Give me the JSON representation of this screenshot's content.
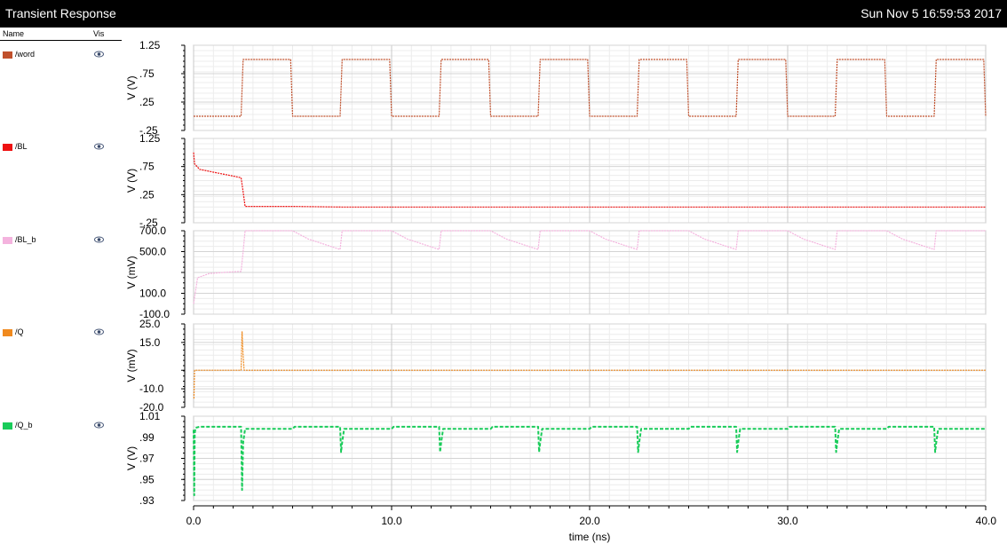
{
  "window": {
    "title": "Transient Response",
    "timestamp": "Sun Nov 5 16:59:53 2017"
  },
  "legend": {
    "header_name": "Name",
    "header_vis": "Vis",
    "items": [
      {
        "label": "/word",
        "color": "#c0502c",
        "visible_icon": "eye-icon"
      },
      {
        "label": "/BL",
        "color": "#ee1111",
        "visible_icon": "eye-icon"
      },
      {
        "label": "/BL_b",
        "color": "#f4b3de",
        "visible_icon": "eye-icon"
      },
      {
        "label": "/Q",
        "color": "#f08a1e",
        "visible_icon": "eye-icon"
      },
      {
        "label": "/Q_b",
        "color": "#19cc5a",
        "visible_icon": "eye-icon"
      }
    ]
  },
  "chart_data": {
    "type": "line",
    "xlabel": "time (ns)",
    "xlim": [
      0,
      40
    ],
    "xticks": [
      0,
      10,
      20,
      30,
      40
    ],
    "xtick_labels": [
      "0.0",
      "10.0",
      "20.0",
      "30.0",
      "40.0"
    ],
    "grid": true,
    "subplots": [
      {
        "name": "/word",
        "color": "#c0502c",
        "ylabel": "V (V)",
        "ylim": [
          -0.25,
          1.25
        ],
        "yticks": [
          -0.25,
          0.25,
          0.75,
          1.25
        ],
        "ytick_labels": [
          "-.25",
          ".25",
          ".75",
          "1.25"
        ],
        "x": [
          0,
          2.4,
          2.5,
          4.9,
          5.0,
          7.4,
          7.5,
          9.9,
          10.0,
          12.4,
          12.5,
          14.9,
          15.0,
          17.4,
          17.5,
          19.9,
          20.0,
          22.4,
          22.5,
          24.9,
          25.0,
          27.4,
          27.5,
          29.9,
          30.0,
          32.4,
          32.5,
          34.9,
          35.0,
          37.4,
          37.5,
          39.9,
          40.0
        ],
        "y": [
          0,
          0,
          1.0,
          1.0,
          0,
          0,
          1.0,
          1.0,
          0,
          0,
          1.0,
          1.0,
          0,
          0,
          1.0,
          1.0,
          0,
          0,
          1.0,
          1.0,
          0,
          0,
          1.0,
          1.0,
          0,
          0,
          1.0,
          1.0,
          0,
          0,
          1.0,
          1.0,
          0
        ]
      },
      {
        "name": "/BL",
        "color": "#ee1111",
        "ylabel": "V (V)",
        "ylim": [
          -0.25,
          1.25
        ],
        "yticks": [
          -0.25,
          0.25,
          0.75,
          1.25
        ],
        "ytick_labels": [
          "-.25",
          ".25",
          ".75",
          "1.25"
        ],
        "x": [
          0,
          0.05,
          0.3,
          1.0,
          2.0,
          2.4,
          2.5,
          2.6,
          5.0,
          7.5,
          10.0,
          15.0,
          20.0,
          25.0,
          30.0,
          35.0,
          40.0
        ],
        "y": [
          1.0,
          0.8,
          0.7,
          0.65,
          0.58,
          0.55,
          0.3,
          0.04,
          0.04,
          0.03,
          0.03,
          0.03,
          0.03,
          0.03,
          0.03,
          0.03,
          0.03
        ]
      },
      {
        "name": "/BL_b",
        "color": "#f4b3de",
        "ylabel": "V (mV)",
        "ylim": [
          -100,
          700
        ],
        "yticks": [
          -100,
          100,
          300,
          500,
          700
        ],
        "ytick_labels": [
          "-100.0",
          "100.0",
          "",
          "500.0",
          "700.0"
        ],
        "x": [
          0,
          0.2,
          0.8,
          1.5,
          2.4,
          2.5,
          2.6,
          5.0,
          5.8,
          7.4,
          7.5,
          10.0,
          10.8,
          12.4,
          12.5,
          15.0,
          15.8,
          17.4,
          17.5,
          20.0,
          20.8,
          22.4,
          22.5,
          25.0,
          25.8,
          27.4,
          27.5,
          30.0,
          30.8,
          32.4,
          32.5,
          35.0,
          35.8,
          37.4,
          37.5,
          40.0
        ],
        "y": [
          0,
          250,
          290,
          300,
          310,
          500,
          700,
          700,
          620,
          520,
          700,
          700,
          620,
          520,
          700,
          700,
          620,
          520,
          700,
          700,
          620,
          520,
          700,
          700,
          620,
          520,
          700,
          700,
          620,
          520,
          700,
          700,
          620,
          520,
          700,
          700
        ]
      },
      {
        "name": "/Q",
        "color": "#f08a1e",
        "ylabel": "V (mV)",
        "ylim": [
          -20,
          25
        ],
        "yticks": [
          -20,
          -10,
          0,
          15,
          25
        ],
        "ytick_labels": [
          "-20.0",
          "-10.0",
          "",
          "15.0",
          "25.0"
        ],
        "x": [
          0,
          0.02,
          0.05,
          0.1,
          2.4,
          2.45,
          2.5,
          2.55,
          2.6,
          40.0
        ],
        "y": [
          -15,
          -15,
          0,
          0,
          0,
          21,
          8,
          0,
          0,
          0
        ]
      },
      {
        "name": "/Q_b",
        "color": "#19cc5a",
        "ylabel": "V (V)",
        "ylim": [
          0.93,
          1.01
        ],
        "yticks": [
          0.93,
          0.95,
          0.97,
          0.99,
          1.01
        ],
        "ytick_labels": [
          ".93",
          ".95",
          ".97",
          ".99",
          "1.01"
        ],
        "x": [
          0,
          0.03,
          0.06,
          0.1,
          0.3,
          2.4,
          2.45,
          2.5,
          2.6,
          2.7,
          5.0,
          5.1,
          7.4,
          7.45,
          7.5,
          7.6,
          10.0,
          10.1,
          12.4,
          12.45,
          12.5,
          12.6,
          15.0,
          15.1,
          17.4,
          17.45,
          17.5,
          17.6,
          20.0,
          20.1,
          22.4,
          22.45,
          22.5,
          22.6,
          25.0,
          25.1,
          27.4,
          27.45,
          27.5,
          27.6,
          30.0,
          30.1,
          32.4,
          32.45,
          32.5,
          32.6,
          35.0,
          35.1,
          37.4,
          37.45,
          37.5,
          37.6,
          40.0
        ],
        "y": [
          0.997,
          0.935,
          0.994,
          0.999,
          1.0,
          1.0,
          0.94,
          0.985,
          0.998,
          0.998,
          0.998,
          1.0,
          1.0,
          0.976,
          0.985,
          0.998,
          0.998,
          1.0,
          1.0,
          0.976,
          0.985,
          0.998,
          0.998,
          1.0,
          1.0,
          0.976,
          0.985,
          0.998,
          0.998,
          1.0,
          1.0,
          0.976,
          0.985,
          0.998,
          0.998,
          1.0,
          1.0,
          0.976,
          0.985,
          0.998,
          0.998,
          1.0,
          1.0,
          0.976,
          0.985,
          0.998,
          0.998,
          1.0,
          1.0,
          0.976,
          0.985,
          0.998,
          0.998
        ]
      }
    ]
  }
}
